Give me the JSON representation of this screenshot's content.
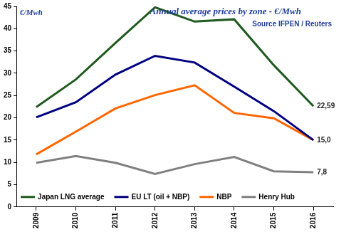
{
  "chart_data": {
    "type": "line",
    "title": "Annual average prices by zone - €/Mwh",
    "subtitle": "Source IFPEN / Reuters",
    "y_label": "€/Mwh",
    "categories": [
      "2009",
      "2010",
      "2011",
      "2012",
      "2013",
      "2014",
      "2015",
      "2016"
    ],
    "series": [
      {
        "name": "Japan LNG average",
        "color": "#1f5a1f",
        "values": [
          22.4,
          28.6,
          36.8,
          44.8,
          41.6,
          42.1,
          31.8,
          22.59
        ],
        "value_labels": [
          null,
          null,
          null,
          null,
          null,
          null,
          null,
          "22,59"
        ]
      },
      {
        "name": "EU LT (oil + NBP)",
        "color": "#000080",
        "values": [
          20.1,
          23.5,
          29.7,
          33.9,
          32.4,
          27.0,
          21.5,
          15.0
        ],
        "value_labels": [
          null,
          null,
          null,
          null,
          null,
          null,
          null,
          "15,0"
        ]
      },
      {
        "name": "NBP",
        "color": "#ff6600",
        "values": [
          11.8,
          16.9,
          22.1,
          25.1,
          27.3,
          21.1,
          19.9,
          15.0
        ]
      },
      {
        "name": "Henry Hub",
        "color": "#808080",
        "values": [
          9.9,
          11.4,
          9.9,
          7.4,
          9.6,
          11.2,
          8.0,
          7.8
        ],
        "value_labels": [
          null,
          null,
          null,
          null,
          null,
          null,
          null,
          "7,8"
        ]
      }
    ],
    "ylim": [
      0,
      45
    ],
    "yticks": [
      0,
      5,
      10,
      15,
      20,
      25,
      30,
      35,
      40,
      45
    ],
    "grid": false,
    "legend": "bottom",
    "data_labels": true
  }
}
